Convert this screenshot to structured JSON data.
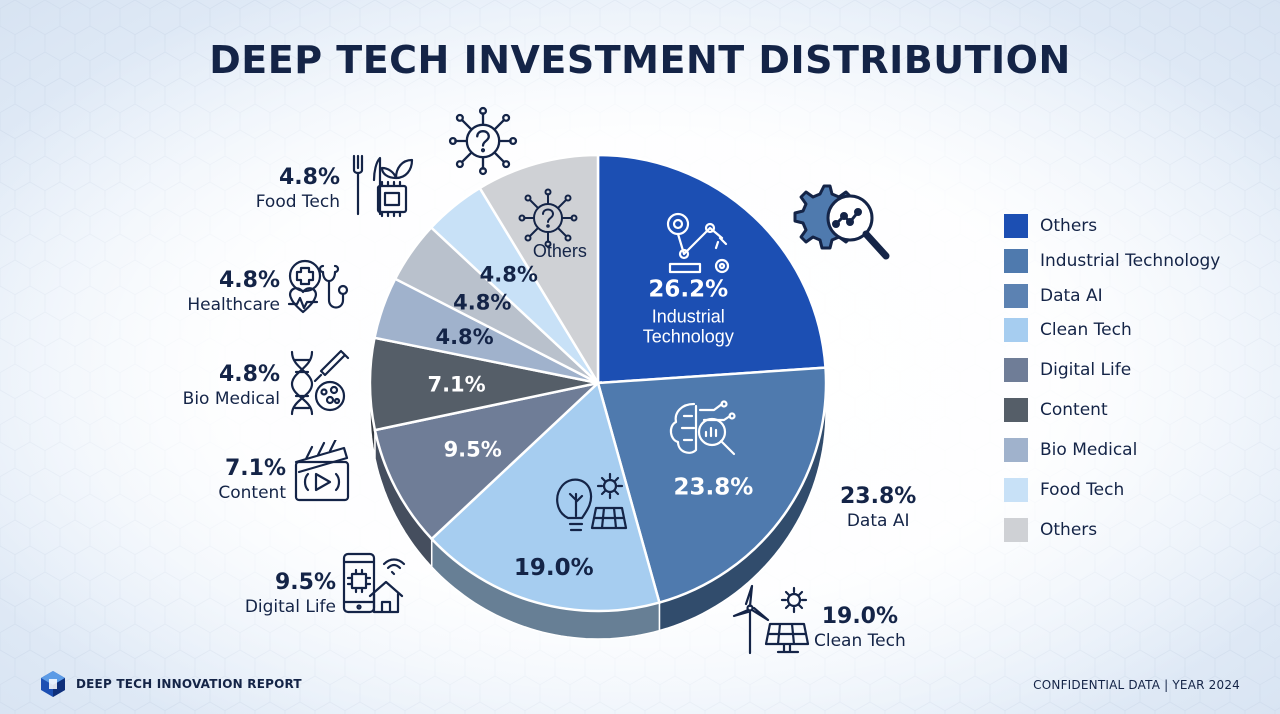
{
  "title": "DEEP TECH INVESTMENT DISTRIBUTION",
  "chart_data": {
    "type": "pie",
    "title": "DEEP TECH INVESTMENT DISTRIBUTION",
    "slices": [
      {
        "name": "Industrial Technology",
        "value": 26.2,
        "label": "26.2%",
        "inner_name": "Industrial Technology",
        "color": "#1c4fb3"
      },
      {
        "name": "Data AI",
        "value": 23.8,
        "label": "23.8%",
        "color": "#4f7aae"
      },
      {
        "name": "Clean Tech",
        "value": 19.0,
        "label": "19.0%",
        "color": "#a6cdf0"
      },
      {
        "name": "Digital Life",
        "value": 9.5,
        "label": "9.5%",
        "color": "#6f7d97"
      },
      {
        "name": "Content",
        "value": 7.1,
        "label": "7.1%",
        "color": "#555e68"
      },
      {
        "name": "Bio Medical",
        "value": 4.8,
        "label": "4.8%",
        "color": "#a0b2cc"
      },
      {
        "name": "Healthcare",
        "value": 4.8,
        "label": "4.8%",
        "color": "#b9c1cc"
      },
      {
        "name": "Food Tech",
        "value": 4.8,
        "label": "4.8%",
        "color": "#c8e1f7"
      },
      {
        "name": "Others",
        "value": 9.5,
        "label": "Others",
        "color": "#cfd1d5"
      }
    ],
    "legend_position": "right",
    "legend": [
      {
        "label": "Others",
        "color": "#1c4fb3"
      },
      {
        "label": "Industrial Technology",
        "color": "#4f7aae"
      },
      {
        "label": "Data AI",
        "color": "#5c82b2"
      },
      {
        "label": "Clean Tech",
        "color": "#a6cdf0"
      },
      {
        "label": "Digital Life",
        "color": "#6f7d97"
      },
      {
        "label": "Content",
        "color": "#555e68"
      },
      {
        "label": "Bio Medical",
        "color": "#a0b2cc"
      },
      {
        "label": "Food Tech",
        "color": "#c8e1f7"
      },
      {
        "label": "Others",
        "color": "#cfd1d5"
      }
    ],
    "external_labels": [
      {
        "pct": "4.8%",
        "name": "Food Tech"
      },
      {
        "pct": "4.8%",
        "name": "Healthcare"
      },
      {
        "pct": "4.8%",
        "name": "Bio Medical"
      },
      {
        "pct": "7.1%",
        "name": "Content"
      },
      {
        "pct": "9.5%",
        "name": "Digital Life"
      },
      {
        "pct": "23.8%",
        "name": "Data AI"
      },
      {
        "pct": "19.0%",
        "name": "Clean Tech"
      }
    ]
  },
  "footer": {
    "brand": "DEEP TECH INNOVATION REPORT",
    "right": "CONFIDENTIAL DATA | YEAR 2024"
  }
}
